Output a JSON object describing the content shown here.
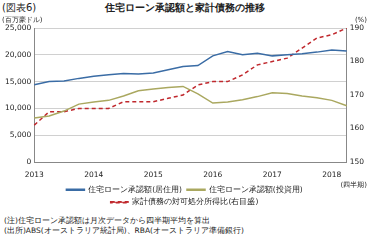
{
  "chart_data": {
    "type": "line",
    "label": "(図表6)",
    "title": "住宅ローン承認額と家計債務の推移",
    "y_label": "(百万豪ドル)",
    "y2_label": "(%)",
    "x_label": "(四半期)",
    "notes": [
      "(注)住宅ローン承認額は月次データから四半期平均を算出",
      "(出所)ABS(オーストラリア統計局)、RBA(オーストラリア準備銀行)"
    ],
    "categories": [
      "2013",
      null,
      null,
      null,
      "2014",
      null,
      null,
      null,
      "2015",
      null,
      null,
      null,
      "2016",
      null,
      null,
      null,
      "2017",
      null,
      null,
      null,
      "2018",
      null
    ],
    "series": [
      {
        "name": "住宅ローン承認額(居住用)",
        "color": "#3a6ca5",
        "line_style": "solid",
        "values": [
          14400,
          15000,
          15100,
          15600,
          16000,
          16300,
          16500,
          16400,
          16600,
          17200,
          17800,
          18000,
          19800,
          20600,
          20000,
          20300,
          19800,
          20000,
          20200,
          20500,
          20900,
          20700
        ]
      },
      {
        "name": "住宅ローン承認額(投資用)",
        "color": "#aaa860",
        "line_style": "solid",
        "values": [
          8200,
          8600,
          9500,
          10800,
          11200,
          11500,
          12300,
          13300,
          13600,
          13900,
          14100,
          12700,
          11000,
          11200,
          11600,
          12200,
          12900,
          12800,
          12300,
          12000,
          11500,
          10500
        ]
      },
      {
        "name": "家計債務の対可処分所得比(右目盛)",
        "color": "#c0282d",
        "line_style": "dashed",
        "axis": "y2",
        "values": [
          161,
          165,
          165,
          166,
          166,
          166,
          168,
          168,
          168,
          169,
          170,
          173,
          174,
          174,
          176,
          179,
          180,
          181,
          184,
          187,
          188,
          190
        ]
      }
    ],
    "ylim": [
      0,
      25000
    ],
    "yticks": [
      0,
      {
        "value": 5000,
        "label": "5,000"
      },
      {
        "value": 10000,
        "label": "10,000"
      },
      {
        "value": 15000,
        "label": "15,000"
      },
      {
        "value": 20000,
        "label": "20,000"
      },
      {
        "value": 25000,
        "label": "25,000"
      }
    ],
    "y2lim": [
      150,
      190
    ],
    "y2ticks": [
      150,
      160,
      170,
      180,
      190
    ],
    "grid": true,
    "legend": "bottom"
  }
}
